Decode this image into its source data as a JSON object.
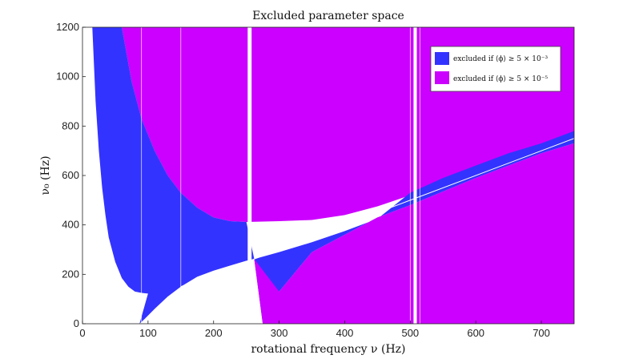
{
  "chart_data": {
    "type": "area",
    "title": "Excluded parameter space",
    "xlabel": "rotational frequency ν (Hz)",
    "ylabel": "ν₀ (Hz)",
    "xlim": [
      0,
      750
    ],
    "ylim": [
      0,
      1200
    ],
    "xticks": [
      "0",
      "100",
      "200",
      "300",
      "400",
      "500",
      "600",
      "700"
    ],
    "yticks": [
      "0",
      "200",
      "400",
      "600",
      "800",
      "1000",
      "1200"
    ],
    "legend_position": "top-right",
    "series": [
      {
        "name": "excluded if ⟨ϕ⟩ ≥ 5 × 10⁻³",
        "color": "#3333ff",
        "boundary_lower": {
          "x": [
            87,
            95,
            110,
            130,
            150,
            175,
            200,
            225,
            250,
            262
          ],
          "y": [
            0,
            20,
            60,
            110,
            150,
            190,
            215,
            235,
            255,
            262
          ]
        },
        "boundary_left": {
          "x": [
            15,
            20,
            25,
            30,
            35,
            40,
            50,
            60,
            70,
            80,
            90,
            100
          ],
          "y": [
            1200,
            900,
            700,
            550,
            440,
            350,
            250,
            185,
            150,
            130,
            125,
            122
          ]
        },
        "band_upper": {
          "x": [
            262,
            300,
            350,
            400,
            450,
            500,
            550,
            600,
            650,
            700,
            750
          ],
          "y": [
            262,
            290,
            330,
            375,
            425,
            530,
            590,
            640,
            690,
            730,
            780
          ]
        },
        "band_lower": {
          "x": [
            262,
            275,
            300,
            350,
            400,
            450,
            500,
            550,
            600,
            650,
            700,
            750
          ],
          "y": [
            262,
            0,
            130,
            290,
            360,
            430,
            480,
            535,
            590,
            640,
            690,
            730
          ]
        }
      },
      {
        "name": "excluded if ⟨ϕ⟩ ≥ 5 × 10⁻⁵",
        "color": "#cc00ff",
        "boundary": {
          "x": [
            60,
            75,
            90,
            110,
            130,
            150,
            175,
            200,
            225,
            250,
            300,
            350,
            400,
            450,
            500,
            550,
            600,
            650,
            700,
            750
          ],
          "y": [
            1200,
            980,
            830,
            700,
            600,
            530,
            470,
            430,
            415,
            412,
            415,
            420,
            440,
            475,
            520,
            580,
            630,
            675,
            715,
            760
          ]
        }
      }
    ],
    "line": {
      "x": [
        150,
        750
      ],
      "y": [
        150,
        750
      ]
    },
    "gaps": [
      {
        "x0": 252,
        "x1": 258
      },
      {
        "x0": 505,
        "x1": 510
      }
    ],
    "thin_lines_x": [
      90,
      150,
      500,
      515
    ]
  }
}
